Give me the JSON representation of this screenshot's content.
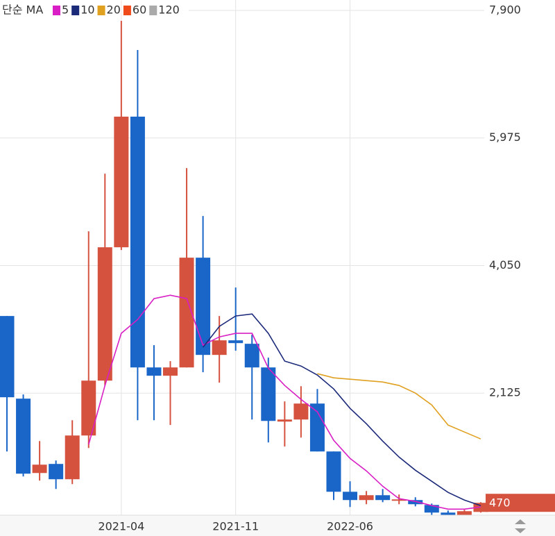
{
  "chart_data": {
    "type": "candlestick",
    "legend_title": "단순 MA",
    "categories": [
      null,
      null,
      null,
      null,
      null,
      null,
      null,
      "2021-04",
      null,
      null,
      null,
      null,
      null,
      null,
      "2021-11",
      null,
      null,
      null,
      null,
      null,
      null,
      "2022-06",
      null,
      null,
      null,
      null,
      null,
      null,
      null,
      null
    ],
    "candles": {
      "up_color": "#d5523f",
      "down_color": "#1a66c8",
      "open": [
        3289,
        2042,
        920,
        1057,
        826,
        1486,
        2314,
        4326,
        6297,
        2513,
        2388,
        2513,
        4169,
        2702,
        2922,
        2870,
        2513,
        1696,
        1727,
        1968,
        1245,
        637,
        512,
        585,
        501,
        512,
        438,
        323,
        239,
        333
      ],
      "high": [
        3289,
        2105,
        1402,
        1109,
        1717,
        4567,
        5437,
        8050,
        7303,
        2849,
        2608,
        5521,
        4798,
        3289,
        3718,
        3006,
        2660,
        2000,
        2230,
        2188,
        1245,
        795,
        648,
        679,
        596,
        554,
        459,
        354,
        365,
        480
      ],
      "low": [
        1245,
        868,
        805,
        679,
        753,
        1298,
        2241,
        4284,
        1717,
        1717,
        1644,
        2513,
        2440,
        2283,
        2765,
        1727,
        1381,
        1319,
        1455,
        1245,
        512,
        407,
        449,
        480,
        449,
        417,
        281,
        218,
        218,
        323
      ],
      "close": [
        2063,
        910,
        1046,
        826,
        1486,
        2314,
        4326,
        6297,
        2513,
        2388,
        2513,
        4169,
        2702,
        2922,
        2880,
        2513,
        1706,
        1727,
        1968,
        1245,
        637,
        512,
        585,
        512,
        522,
        449,
        323,
        239,
        344,
        470
      ]
    },
    "series": [
      {
        "name": "5",
        "color": "#d81ec4",
        "values": [
          null,
          null,
          null,
          null,
          null,
          1350,
          2241,
          3027,
          3236,
          3551,
          3603,
          3551,
          2849,
          2974,
          3027,
          3027,
          2503,
          2241,
          2031,
          1843,
          1413,
          1140,
          952,
          721,
          533,
          491,
          428,
          375,
          375,
          407
        ]
      },
      {
        "name": "10",
        "color": "#1c2a7a",
        "values": [
          null,
          null,
          null,
          null,
          null,
          null,
          null,
          null,
          null,
          null,
          null,
          null,
          2817,
          3132,
          3289,
          3320,
          3027,
          2608,
          2534,
          2398,
          2188,
          1895,
          1664,
          1402,
          1161,
          962,
          795,
          627,
          512,
          428
        ]
      },
      {
        "name": "20",
        "color": "#e0a020",
        "values": [
          null,
          null,
          null,
          null,
          null,
          null,
          null,
          null,
          null,
          null,
          null,
          null,
          null,
          null,
          null,
          null,
          null,
          null,
          null,
          2419,
          2356,
          2335,
          2314,
          2293,
          2241,
          2125,
          1947,
          1644,
          1539,
          1434
        ]
      },
      {
        "name": "60",
        "color": "#f04a1a",
        "values": [
          null,
          null,
          null,
          null,
          null,
          null,
          null,
          null,
          null,
          null,
          null,
          null,
          null,
          null,
          null,
          null,
          null,
          null,
          null,
          null,
          null,
          null,
          null,
          null,
          null,
          null,
          null,
          null,
          null,
          null
        ]
      },
      {
        "name": "120",
        "color": "#aaaaaa",
        "values": [
          null,
          null,
          null,
          null,
          null,
          null,
          null,
          null,
          null,
          null,
          null,
          null,
          null,
          null,
          null,
          null,
          null,
          null,
          null,
          null,
          null,
          null,
          null,
          null,
          null,
          null,
          null,
          null,
          null,
          null
        ]
      }
    ],
    "ylim": [
      200,
      8057
    ],
    "yticks": [
      {
        "value": 7900,
        "label": "7,900"
      },
      {
        "value": 5975,
        "label": "5,975"
      },
      {
        "value": 4050,
        "label": "4,050"
      },
      {
        "value": 2125,
        "label": "2,125"
      },
      200
    ],
    "grid": true,
    "last_price": 470,
    "last_price_color": "#d5523f"
  }
}
